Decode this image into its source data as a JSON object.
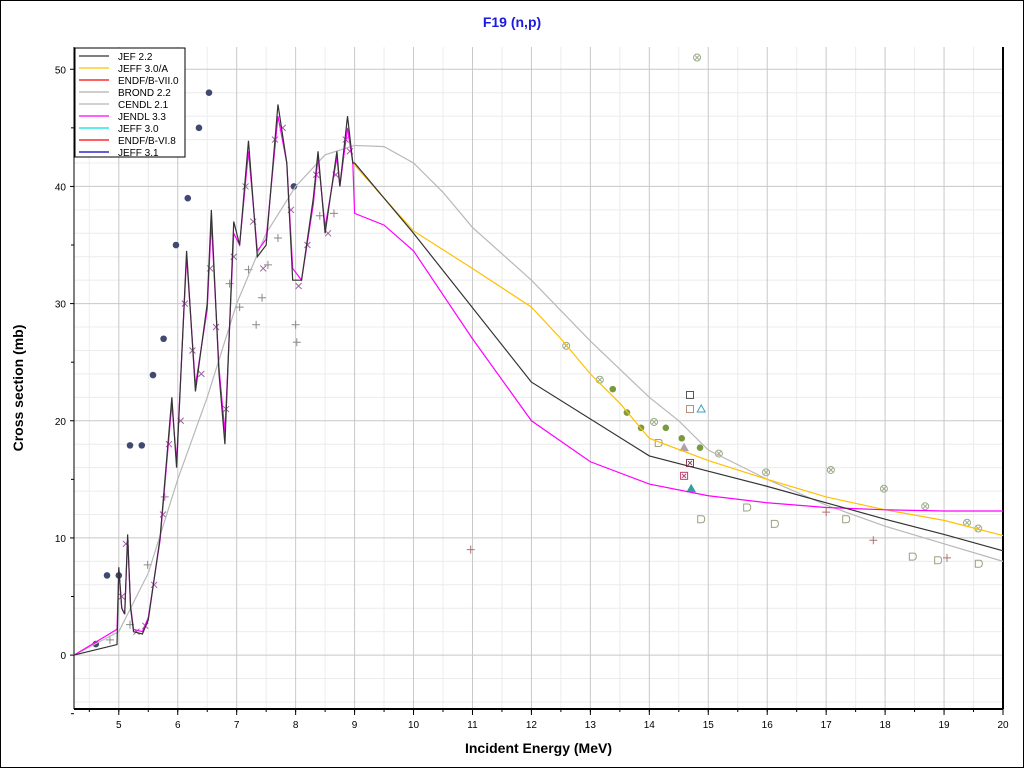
{
  "chart_data": {
    "type": "line",
    "title": "F19 (n,p)",
    "xlabel": "Incident Energy (MeV)",
    "ylabel": "Cross section (mb)",
    "xlim": [
      4.24,
      20
    ],
    "ylim": [
      -4.6,
      51.9
    ],
    "xticks": [
      5,
      6,
      7,
      8,
      9,
      10,
      11,
      12,
      13,
      14,
      15,
      16,
      17,
      18,
      19,
      20
    ],
    "yticks": [
      0,
      10,
      20,
      30,
      40,
      50
    ],
    "grid": true,
    "legend_position": "top-left",
    "legend": [
      {
        "name": "JEF 2.2",
        "color": "#333333"
      },
      {
        "name": "JEFF 3.0/A",
        "color": "#ffc000"
      },
      {
        "name": "ENDF/B-VII.0",
        "color": "#ff0000"
      },
      {
        "name": "BROND 2.2",
        "color": "#b0b0b0"
      },
      {
        "name": "CENDL 2.1",
        "color": "#b8b8b8"
      },
      {
        "name": "JENDL 3.3",
        "color": "#ff00ff"
      },
      {
        "name": "JEFF 3.0",
        "color": "#00e0e0"
      },
      {
        "name": "ENDF/B-VI.8",
        "color": "#ff0000"
      },
      {
        "name": "JEFF 3.1",
        "color": "#0000c0"
      }
    ],
    "series": [
      {
        "name": "CENDL 2.1",
        "color": "#b8b8b8",
        "points": [
          [
            4.24,
            0
          ],
          [
            5,
            2
          ],
          [
            5.5,
            7
          ],
          [
            6,
            15
          ],
          [
            6.5,
            22
          ],
          [
            7,
            30
          ],
          [
            7.5,
            36
          ],
          [
            8,
            40
          ],
          [
            8.5,
            42.7
          ],
          [
            9,
            43.5
          ],
          [
            9.5,
            43.4
          ],
          [
            10,
            42
          ],
          [
            10.5,
            39.5
          ],
          [
            11,
            36.5
          ],
          [
            12,
            32
          ],
          [
            13,
            26.8
          ],
          [
            14,
            22
          ],
          [
            14.5,
            20
          ],
          [
            15,
            17.5
          ],
          [
            16,
            15
          ],
          [
            17,
            12.8
          ],
          [
            18,
            11
          ],
          [
            19,
            9.5
          ],
          [
            20,
            8
          ]
        ]
      },
      {
        "name": "JEFF 3.0/A",
        "color": "#ffc000",
        "points": [
          [
            8.97,
            42
          ],
          [
            9.5,
            39
          ],
          [
            10,
            36.2
          ],
          [
            11,
            33
          ],
          [
            12,
            29.7
          ],
          [
            12.5,
            27
          ],
          [
            13,
            24
          ],
          [
            13.5,
            21.5
          ],
          [
            14,
            18.5
          ],
          [
            15,
            16.6
          ],
          [
            16,
            15
          ],
          [
            17,
            13.5
          ],
          [
            18,
            12.4
          ],
          [
            19,
            11.5
          ],
          [
            20,
            10.2
          ]
        ]
      },
      {
        "name": "JENDL 3.3",
        "color": "#ff00ff",
        "points": [
          [
            4.24,
            0
          ],
          [
            4.97,
            2.2
          ],
          [
            5.0,
            7.3
          ],
          [
            5.05,
            4
          ],
          [
            5.1,
            3.5
          ],
          [
            5.15,
            10
          ],
          [
            5.2,
            4.2
          ],
          [
            5.25,
            2.2
          ],
          [
            5.4,
            2
          ],
          [
            5.5,
            3.2
          ],
          [
            5.7,
            9.8
          ],
          [
            5.9,
            21.5
          ],
          [
            5.98,
            16.5
          ],
          [
            6.15,
            34
          ],
          [
            6.3,
            23
          ],
          [
            6.5,
            29.5
          ],
          [
            6.57,
            37
          ],
          [
            6.7,
            24.5
          ],
          [
            6.8,
            19
          ],
          [
            6.95,
            36
          ],
          [
            7.05,
            35
          ],
          [
            7.2,
            43
          ],
          [
            7.35,
            34.5
          ],
          [
            7.5,
            35.5
          ],
          [
            7.7,
            46
          ],
          [
            7.85,
            42
          ],
          [
            7.95,
            33
          ],
          [
            8.1,
            32
          ],
          [
            8.3,
            38.5
          ],
          [
            8.38,
            42.5
          ],
          [
            8.5,
            36.5
          ],
          [
            8.7,
            42.5
          ],
          [
            8.75,
            40
          ],
          [
            8.88,
            45
          ],
          [
            8.97,
            42
          ],
          [
            9.0,
            37.7
          ],
          [
            9.5,
            36.7
          ],
          [
            10,
            34.5
          ],
          [
            11,
            27
          ],
          [
            12,
            20
          ],
          [
            13,
            16.5
          ],
          [
            14,
            14.6
          ],
          [
            15,
            13.6
          ],
          [
            16,
            13
          ],
          [
            17,
            12.6
          ],
          [
            18,
            12.4
          ],
          [
            19,
            12.3
          ],
          [
            20,
            12.3
          ]
        ]
      },
      {
        "name": "JEF 2.2",
        "color": "#333333",
        "points": [
          [
            4.24,
            0
          ],
          [
            4.97,
            0.9
          ],
          [
            5.0,
            7.5
          ],
          [
            5.05,
            4
          ],
          [
            5.1,
            3.5
          ],
          [
            5.15,
            10.3
          ],
          [
            5.2,
            4
          ],
          [
            5.25,
            2.0
          ],
          [
            5.4,
            1.8
          ],
          [
            5.5,
            3
          ],
          [
            5.7,
            10
          ],
          [
            5.9,
            22
          ],
          [
            5.98,
            16
          ],
          [
            6.15,
            34.5
          ],
          [
            6.3,
            22.5
          ],
          [
            6.5,
            30
          ],
          [
            6.57,
            38
          ],
          [
            6.7,
            24
          ],
          [
            6.8,
            18
          ],
          [
            6.95,
            37
          ],
          [
            7.05,
            35
          ],
          [
            7.2,
            43.9
          ],
          [
            7.35,
            34
          ],
          [
            7.5,
            35
          ],
          [
            7.7,
            47
          ],
          [
            7.85,
            42
          ],
          [
            7.95,
            32
          ],
          [
            8.1,
            32
          ],
          [
            8.3,
            39
          ],
          [
            8.38,
            43
          ],
          [
            8.5,
            36
          ],
          [
            8.7,
            43
          ],
          [
            8.75,
            40
          ],
          [
            8.88,
            46
          ],
          [
            8.97,
            42
          ],
          [
            9.0,
            42
          ],
          [
            9.5,
            39
          ],
          [
            10,
            36
          ],
          [
            12,
            23.3
          ],
          [
            14,
            17
          ],
          [
            15,
            15.7
          ],
          [
            16,
            14.4
          ],
          [
            17,
            13
          ],
          [
            18,
            11.6
          ],
          [
            19,
            10.3
          ],
          [
            20,
            8.9
          ]
        ]
      }
    ],
    "experimental": [
      {
        "marker": "dot",
        "color": "#404a70",
        "points": [
          [
            4.61,
            0.94
          ],
          [
            4.8,
            6.8
          ],
          [
            5.0,
            6.8
          ],
          [
            5.19,
            17.9
          ],
          [
            5.39,
            17.9
          ],
          [
            5.58,
            23.9
          ],
          [
            5.76,
            27
          ],
          [
            5.97,
            35
          ],
          [
            6.17,
            39
          ],
          [
            6.36,
            45
          ],
          [
            6.53,
            48
          ],
          [
            7.97,
            40
          ]
        ]
      },
      {
        "marker": "plus",
        "color": "#8a8a8a",
        "points": [
          [
            4.85,
            1.3
          ],
          [
            5.19,
            2.6
          ],
          [
            5.49,
            7.7
          ],
          [
            5.78,
            13.5
          ],
          [
            6.88,
            31.7
          ],
          [
            7.05,
            29.7
          ],
          [
            7.2,
            32.9
          ],
          [
            7.33,
            28.2
          ],
          [
            7.43,
            30.5
          ],
          [
            7.53,
            33.3
          ],
          [
            7.7,
            35.6
          ],
          [
            8.0,
            28.2
          ],
          [
            8.02,
            26.7
          ],
          [
            8.41,
            37.5
          ],
          [
            8.65,
            37.7
          ]
        ]
      },
      {
        "marker": "plus",
        "color": "#b07070",
        "points": [
          [
            10.97,
            9
          ],
          [
            17.0,
            12.2
          ],
          [
            17.8,
            9.8
          ],
          [
            19.05,
            8.3
          ]
        ]
      },
      {
        "marker": "cross",
        "color": "#a060a0",
        "points": [
          [
            5.05,
            5
          ],
          [
            5.12,
            9.5
          ],
          [
            5.3,
            2
          ],
          [
            5.45,
            2.5
          ],
          [
            5.6,
            6
          ],
          [
            5.75,
            12
          ],
          [
            5.85,
            18
          ],
          [
            6.05,
            20
          ],
          [
            6.12,
            30
          ],
          [
            6.25,
            26
          ],
          [
            6.4,
            24
          ],
          [
            6.55,
            33
          ],
          [
            6.65,
            28
          ],
          [
            6.82,
            21
          ],
          [
            6.95,
            34
          ],
          [
            7.15,
            40
          ],
          [
            7.28,
            37
          ],
          [
            7.45,
            33
          ],
          [
            7.65,
            44
          ],
          [
            7.78,
            45
          ],
          [
            7.92,
            38
          ],
          [
            8.05,
            31.5
          ],
          [
            8.2,
            35
          ],
          [
            8.35,
            41
          ],
          [
            8.55,
            36
          ],
          [
            8.68,
            41
          ],
          [
            8.85,
            44
          ],
          [
            8.92,
            43
          ]
        ]
      },
      {
        "marker": "filled-circle",
        "color": "#7a9a40",
        "points": [
          [
            13.38,
            22.7
          ],
          [
            13.62,
            20.7
          ],
          [
            13.86,
            19.4
          ],
          [
            14.28,
            19.4
          ],
          [
            14.55,
            18.5
          ],
          [
            14.86,
            17.7
          ]
        ]
      },
      {
        "marker": "circle-x",
        "color": "#9aaa88",
        "points": [
          [
            12.59,
            26.4
          ],
          [
            13.16,
            23.5
          ],
          [
            14.08,
            19.9
          ],
          [
            15.18,
            17.2
          ],
          [
            15.98,
            15.6
          ],
          [
            17.08,
            15.8
          ],
          [
            17.98,
            14.2
          ],
          [
            18.68,
            12.7
          ],
          [
            19.39,
            11.3
          ],
          [
            19.58,
            10.8
          ],
          [
            14.81,
            51.0
          ]
        ]
      },
      {
        "marker": "shield",
        "color": "#9aa080",
        "points": [
          [
            14.16,
            18.1
          ],
          [
            14.88,
            11.6
          ],
          [
            15.66,
            12.6
          ],
          [
            16.13,
            11.2
          ],
          [
            17.34,
            11.6
          ],
          [
            18.47,
            8.4
          ],
          [
            18.9,
            8.1
          ],
          [
            19.59,
            7.8
          ]
        ]
      },
      {
        "marker": "square",
        "color": "#505860",
        "points": [
          [
            14.69,
            22.2
          ]
        ]
      },
      {
        "marker": "square",
        "color": "#b09080",
        "points": [
          [
            14.69,
            21.0
          ]
        ]
      },
      {
        "marker": "triangle",
        "color": "#40a0b0",
        "points": [
          [
            14.88,
            21.0
          ]
        ]
      },
      {
        "marker": "filled-triangle",
        "color": "#b0a0b0",
        "points": [
          [
            14.59,
            17.7
          ]
        ]
      },
      {
        "marker": "filled-triangle",
        "color": "#30a0a0",
        "points": [
          [
            14.71,
            14.2
          ]
        ]
      },
      {
        "marker": "square-x",
        "color": "#904050",
        "points": [
          [
            14.69,
            16.4
          ]
        ]
      },
      {
        "marker": "square-x",
        "color": "#c04070",
        "points": [
          [
            14.59,
            15.3
          ]
        ]
      }
    ]
  }
}
